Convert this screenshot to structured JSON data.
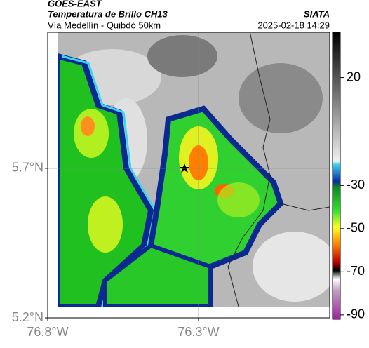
{
  "header": {
    "source": "GOES-EAST",
    "title": "Temperatura de Brillo CH13",
    "brand": "SIATA",
    "subtitle": "Vía Medellín - Quibdó 50km",
    "datetime": "2025-02-18 14:29"
  },
  "map": {
    "xlim": [
      -76.8,
      -75.865
    ],
    "ylim": [
      5.2,
      6.155
    ],
    "xticks": [
      {
        "value": -76.8,
        "label": "76.8°W"
      },
      {
        "value": -76.3,
        "label": "76.3°W"
      }
    ],
    "yticks": [
      {
        "value": 5.2,
        "label": "5.2°N"
      },
      {
        "value": 5.7,
        "label": "5.7°N"
      }
    ],
    "grid": true
  },
  "colorbar": {
    "lim": [
      -92,
      41
    ],
    "ticks": [
      20,
      -30,
      -50,
      -70,
      -90
    ]
  }
}
